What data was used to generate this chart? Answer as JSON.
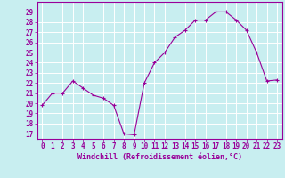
{
  "x": [
    0,
    1,
    2,
    3,
    4,
    5,
    6,
    7,
    8,
    9,
    10,
    11,
    12,
    13,
    14,
    15,
    16,
    17,
    18,
    19,
    20,
    21,
    22,
    23
  ],
  "y": [
    19.8,
    21.0,
    21.0,
    22.2,
    21.5,
    20.8,
    20.5,
    19.8,
    17.0,
    16.9,
    22.0,
    24.0,
    25.0,
    26.5,
    27.2,
    28.2,
    28.2,
    29.0,
    29.0,
    28.2,
    27.2,
    25.0,
    22.2,
    22.3
  ],
  "line_color": "#990099",
  "marker": "+",
  "marker_size": 3,
  "bg_color": "#c8eef0",
  "grid_color": "#ffffff",
  "ylabel_ticks": [
    17,
    18,
    19,
    20,
    21,
    22,
    23,
    24,
    25,
    26,
    27,
    28,
    29
  ],
  "xlabel": "Windchill (Refroidissement éolien,°C)",
  "ylim": [
    16.5,
    30.0
  ],
  "xlim": [
    -0.5,
    23.5
  ],
  "tick_color": "#990099",
  "label_color": "#990099",
  "tick_fontsize": 5.5,
  "xlabel_fontsize": 6.0
}
